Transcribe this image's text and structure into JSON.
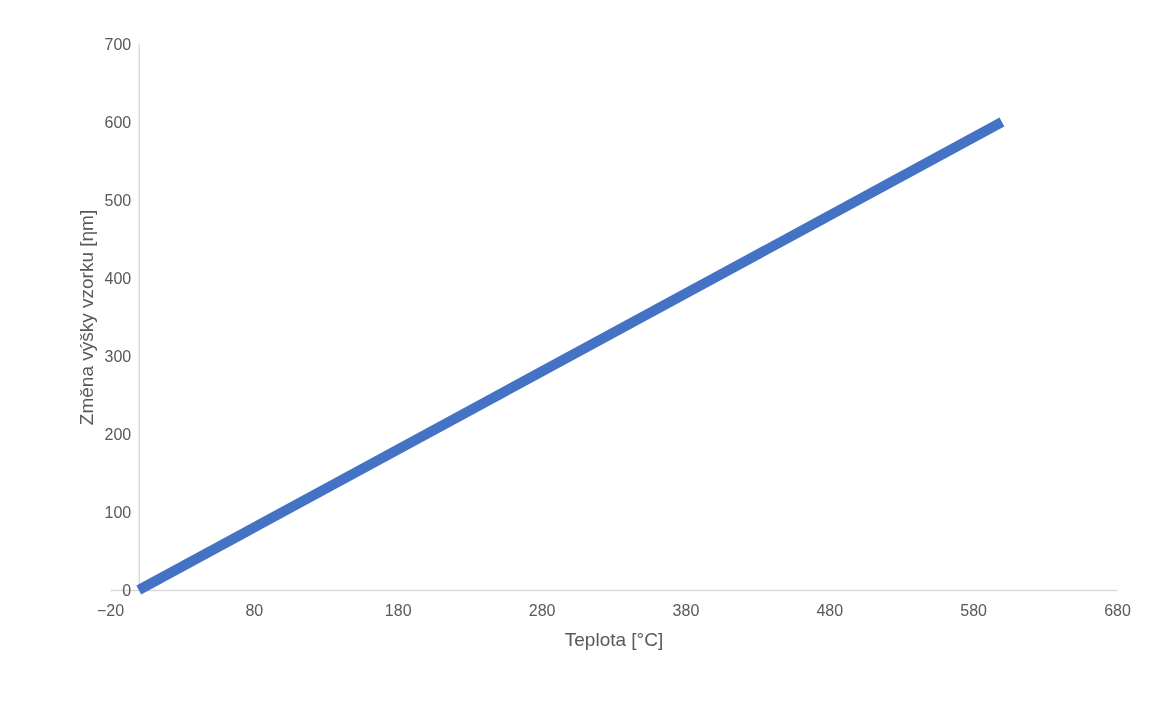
{
  "chart_data": {
    "type": "line",
    "xlabel": "Teplota [°C]",
    "ylabel": "Změna výšky vzorku [ηm]",
    "x": [
      0,
      600
    ],
    "series": [
      {
        "color": "#4472c4",
        "values": [
          0,
          600
        ]
      }
    ],
    "xlim": [
      -20,
      680
    ],
    "xticks": [
      -20,
      80,
      180,
      280,
      380,
      480,
      580,
      680
    ],
    "ylim": [
      0,
      700
    ],
    "yticks": [
      0,
      100,
      200,
      300,
      400,
      500,
      600,
      700
    ],
    "grid": false,
    "legend": false,
    "marker": "none",
    "line_style": "solid"
  }
}
